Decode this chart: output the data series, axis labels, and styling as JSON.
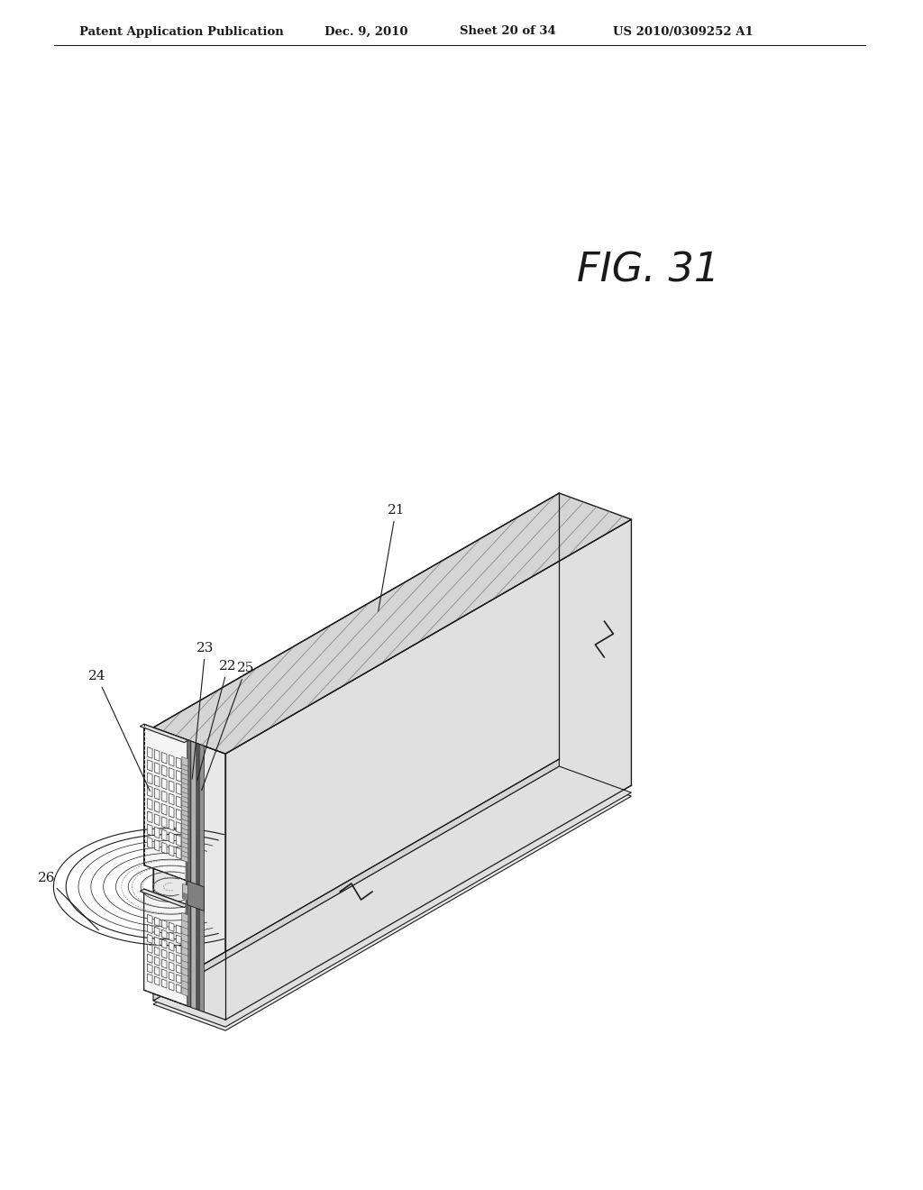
{
  "patent_header": "Patent Application Publication",
  "patent_date": "Dec. 9, 2010",
  "patent_sheet": "Sheet 20 of 34",
  "patent_num": "US 2010/0309252 A1",
  "fig_label": "FIG. 31",
  "bg_color": "#ffffff",
  "line_color": "#1a1a1a",
  "hatch_light": "#c8c8c8",
  "hatch_dark": "#a0a0a0",
  "chip_face": "#f2f2f2",
  "top_face": "#e0e0e0",
  "strip_dark": "#707070",
  "strip_mid": "#999999",
  "strip_light": "#cccccc",
  "nozzle_fill": "#f8f8f8",
  "bump_fill": "#bbbbbb"
}
